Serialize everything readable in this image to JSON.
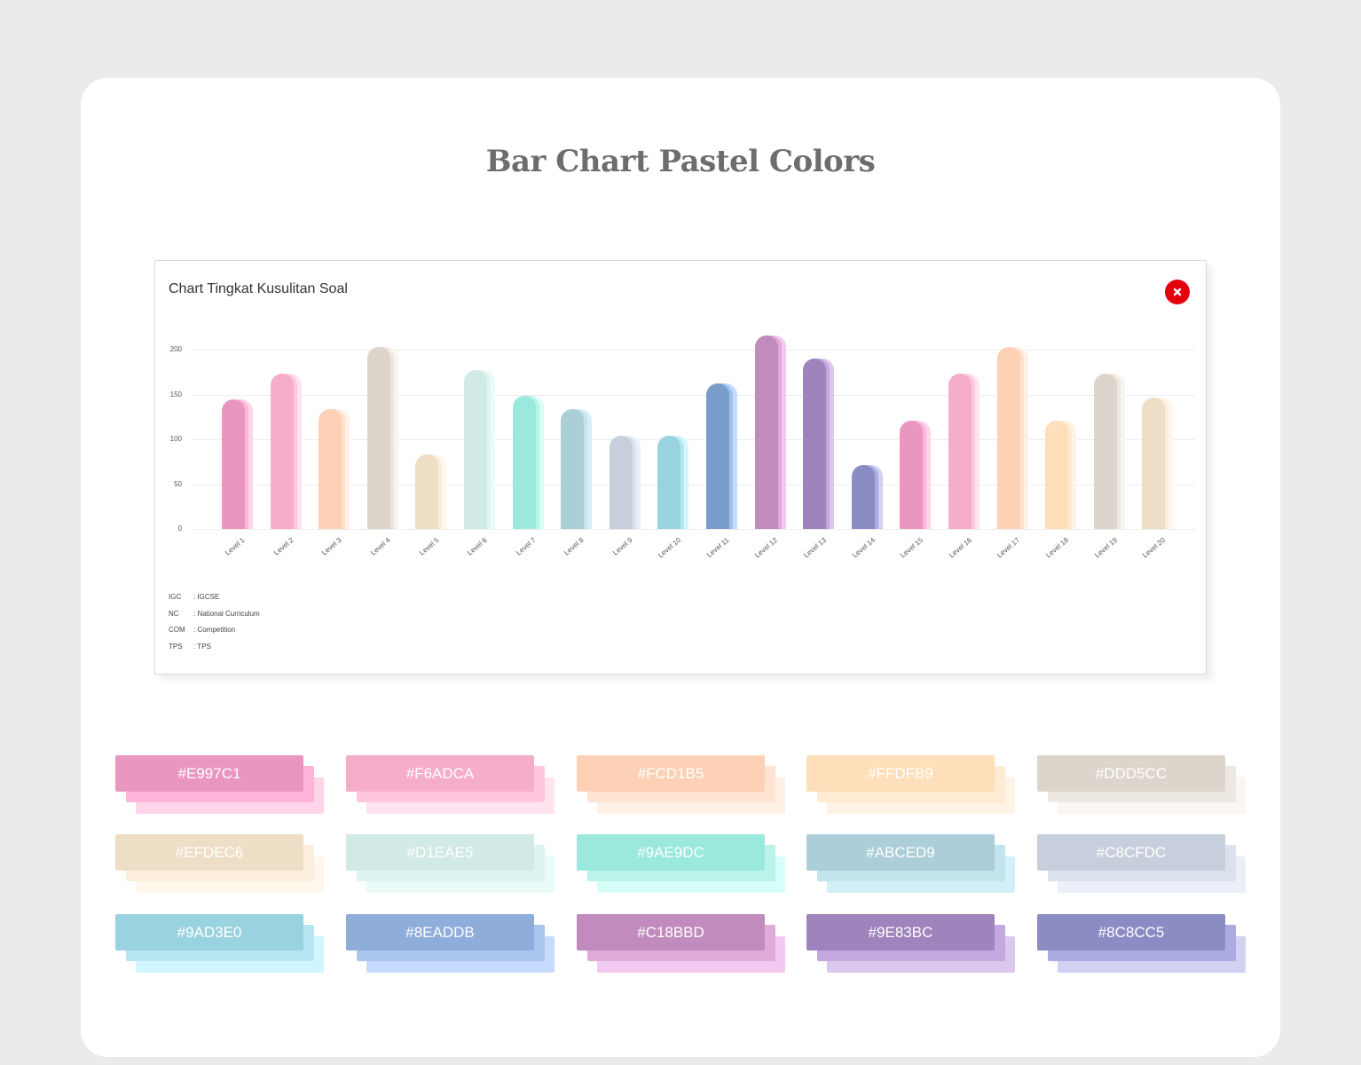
{
  "page": {
    "title": "Bar Chart Pastel Colors"
  },
  "chart_box": {
    "title": "Chart Tingkat Kusulitan Soal",
    "close_icon": "close-icon",
    "close_color": "#e3000f"
  },
  "chart_data": {
    "type": "bar",
    "title": "Chart Tingkat Kusulitan Soal",
    "xlabel": "",
    "ylabel": "",
    "ylim": [
      0,
      220
    ],
    "yticks": [
      0,
      50,
      100,
      150,
      200
    ],
    "grid": true,
    "categories": [
      "Level 1",
      "Level 2",
      "Level 3",
      "Level 4",
      "Level 5",
      "Level 6",
      "Level 7",
      "Level 8",
      "Level 9",
      "Level 10",
      "Level 11",
      "Level 12",
      "Level 13",
      "Level 14",
      "Level 15",
      "Level 16",
      "Level 17",
      "Level 18",
      "Level 19",
      "Level 20"
    ],
    "values": [
      145,
      173,
      134,
      203,
      83,
      177,
      149,
      134,
      104,
      104,
      162,
      216,
      190,
      71,
      121,
      173,
      203,
      121,
      173,
      147
    ],
    "colors": [
      "#E997C1",
      "#F6ADCA",
      "#FCD1B5",
      "#DDD5CC",
      "#EFDEC6",
      "#D1EAE5",
      "#9AE9DC",
      "#ABCED9",
      "#C8CFDC",
      "#9AD3E0",
      "#799CCA",
      "#C18BBD",
      "#9E83BC",
      "#8C8CC5",
      "#E997C1",
      "#F6ADCA",
      "#FCD1B5",
      "#FFDFB9",
      "#DDD5CC",
      "#EFDEC6"
    ],
    "shade2": [
      "#FFB5DA",
      "#FFC7DF",
      "#FFE0CC",
      "#EEE6DF",
      "#FBEEDC",
      "#DEF4F0",
      "#B9F3E9",
      "#C3E3ED",
      "#DBE2EE",
      "#B6E8F2",
      "#9FC3F0",
      "#E0AAD9",
      "#C4A8E0",
      "#ABABE2",
      "#FFB5DA",
      "#FFC7DF",
      "#FFE0CC",
      "#FFEBD2",
      "#EEE6DF",
      "#FBEEDC"
    ],
    "shade3": [
      "#FFD5EA",
      "#FFE3EE",
      "#FFF0E5",
      "#F8F4F0",
      "#FFF6EC",
      "#EAFBF8",
      "#D6FFF8",
      "#D6F0F8",
      "#EBEFFA",
      "#D3F6FF",
      "#C8DBFF",
      "#F2C9F1",
      "#DCC8EE",
      "#D1D1F2",
      "#FFD5EA",
      "#FFE3EE",
      "#FFF0E5",
      "#FFF3E5",
      "#F8F4F0",
      "#FFF6EC"
    ],
    "legend_position": "none"
  },
  "legend": [
    {
      "key": "IGC",
      "value": ": IGCSE"
    },
    {
      "key": "NC",
      "value": ": National Curriculum"
    },
    {
      "key": "COM",
      "value": ": Competition"
    },
    {
      "key": "TPS",
      "value": ": TPS"
    }
  ],
  "swatches": [
    {
      "hex": "#E997C1",
      "c1": "#E997C1",
      "c2": "#FFB5DA",
      "c3": "#FFD5EA"
    },
    {
      "hex": "#F6ADCA",
      "c1": "#F6ADCA",
      "c2": "#FFC7DF",
      "c3": "#FFE3EE"
    },
    {
      "hex": "#FCD1B5",
      "c1": "#FCD1B5",
      "c2": "#FFE3D3",
      "c3": "#FFF0E5"
    },
    {
      "hex": "#FFDFB9",
      "c1": "#FFDFB9",
      "c2": "#FFEBD4",
      "c3": "#FFF3E5"
    },
    {
      "hex": "#DDD5CC",
      "c1": "#DDD5CC",
      "c2": "#EEE8E2",
      "c3": "#FAF6F2"
    },
    {
      "hex": "#EFDEC6",
      "c1": "#EFDEC6",
      "c2": "#FBEEDC",
      "c3": "#FFF6EC"
    },
    {
      "hex": "#D1EAE5",
      "c1": "#D1EAE5",
      "c2": "#DEF4F0",
      "c3": "#E8FBF8"
    },
    {
      "hex": "#9AE9DC",
      "c1": "#9AE9DC",
      "c2": "#B9F3E9",
      "c3": "#D6FFF8"
    },
    {
      "hex": "#ABCED9",
      "c1": "#ABCED9",
      "c2": "#C3E3ED",
      "c3": "#D3F0F8"
    },
    {
      "hex": "#C8CFDC",
      "c1": "#C8CFDC",
      "c2": "#DBE2EE",
      "c3": "#EBEFFA"
    },
    {
      "hex": "#9AD3E0",
      "c1": "#9AD3E0",
      "c2": "#B6E6F1",
      "c3": "#D1F6FF"
    },
    {
      "hex": "#8EADDB",
      "c1": "#8EADDB",
      "c2": "#AAC6EE",
      "c3": "#C6DBFD"
    },
    {
      "hex": "#C18BBD",
      "c1": "#C18BBD",
      "c2": "#E0AAD9",
      "c3": "#F2C9F1"
    },
    {
      "hex": "#9E83BC",
      "c1": "#9E83BC",
      "c2": "#C4A8E0",
      "c3": "#DCC8EE"
    },
    {
      "hex": "#8C8CC5",
      "c1": "#8C8CC5",
      "c2": "#ABABE2",
      "c3": "#D1D1F2"
    }
  ]
}
